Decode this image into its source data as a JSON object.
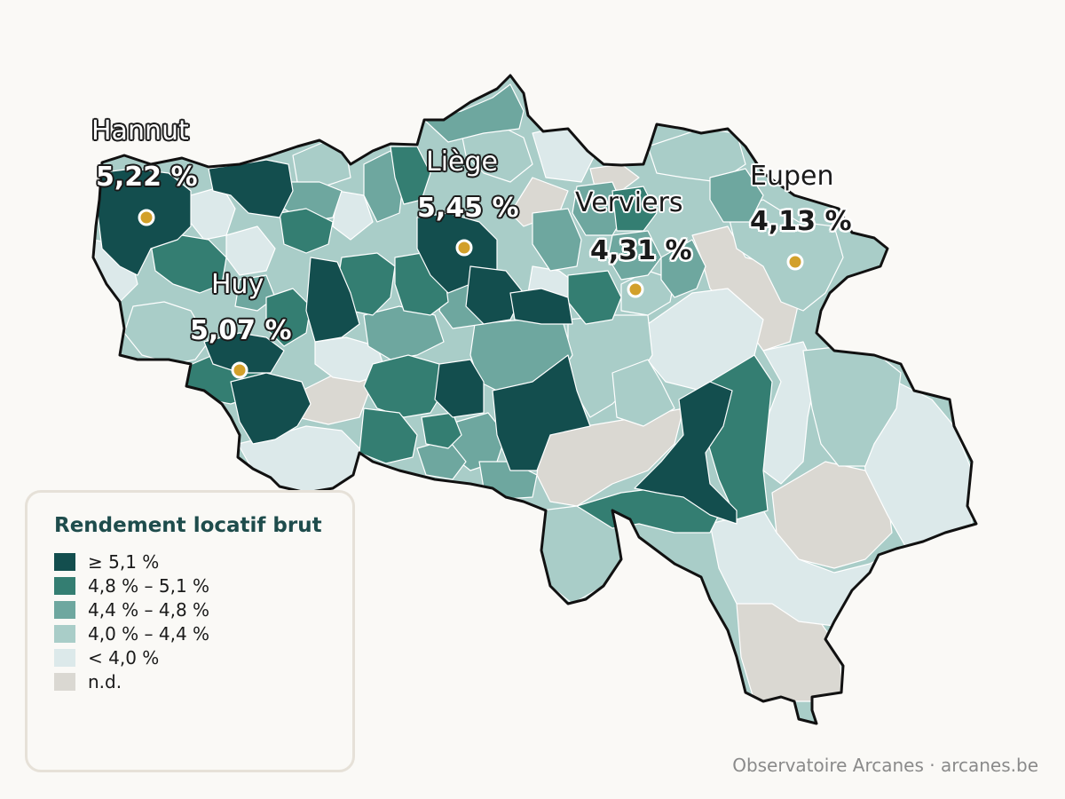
{
  "legend": {
    "title": "Rendement locatif brut",
    "classes": [
      {
        "label": "≥ 5,1 %",
        "color": "#134e4e"
      },
      {
        "label": "4,8 % – 5,1 %",
        "color": "#347e72"
      },
      {
        "label": "4,4 % – 4,8 %",
        "color": "#6ea79f"
      },
      {
        "label": "4,0 % – 4,4 %",
        "color": "#a9cdc8"
      },
      {
        "label": "< 4,0 %",
        "color": "#dce9ea"
      },
      {
        "label": "n.d.",
        "color": "#dad8d2"
      }
    ]
  },
  "cities": [
    {
      "name": "Hannut",
      "value": "5,22 %"
    },
    {
      "name": "Liège",
      "value": "5,45 %"
    },
    {
      "name": "Verviers",
      "value": "4,31 %"
    },
    {
      "name": "Eupen",
      "value": "4,13 %"
    },
    {
      "name": "Huy",
      "value": "5,07 %"
    }
  ],
  "colors": {
    "border": "#111111",
    "marker": "#d2a02a",
    "background": "#faf9f6"
  },
  "credit": "Observatoire Arcanes · arcanes.be"
}
